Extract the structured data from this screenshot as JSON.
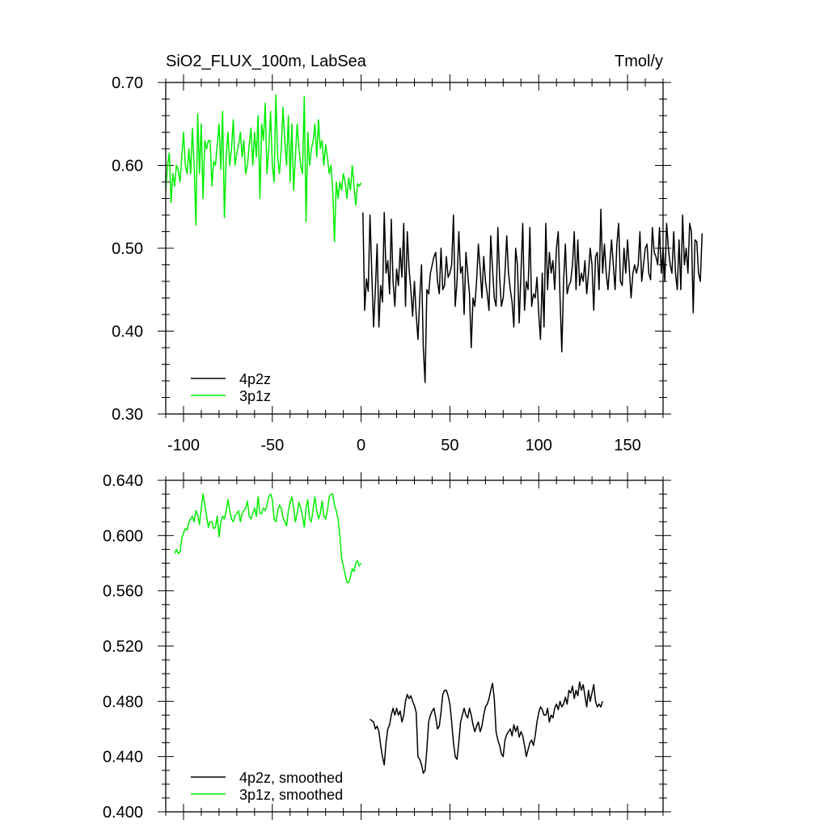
{
  "chart_data": [
    {
      "type": "line",
      "title": "SiO2_FLUX_100m, LabSea",
      "units": "Tmol/y",
      "xlim": [
        -110,
        170
      ],
      "ylim": [
        0.3,
        0.7
      ],
      "x_ticks": [
        -100,
        -50,
        0,
        50,
        100,
        150
      ],
      "x_tick_labels": [
        "-100",
        "-50",
        "0",
        "50",
        "100",
        "150"
      ],
      "y_ticks": [
        0.3,
        0.4,
        0.5,
        0.6,
        0.7
      ],
      "y_tick_labels": [
        "0.30",
        "0.40",
        "0.50",
        "0.60",
        "0.70"
      ],
      "legend_position": "bottom-left",
      "series": [
        {
          "name": "4p2z",
          "color": "#000000",
          "x_start": 1,
          "x_step": 1,
          "values": [
            0.543,
            0.425,
            0.463,
            0.448,
            0.54,
            0.47,
            0.405,
            0.45,
            0.505,
            0.405,
            0.455,
            0.435,
            0.543,
            0.47,
            0.485,
            0.445,
            0.535,
            0.46,
            0.43,
            0.475,
            0.455,
            0.5,
            0.465,
            0.53,
            0.43,
            0.52,
            0.475,
            0.45,
            0.418,
            0.46,
            0.42,
            0.39,
            0.44,
            0.48,
            0.38,
            0.338,
            0.45,
            0.445,
            0.47,
            0.48,
            0.49,
            0.495,
            0.46,
            0.445,
            0.5,
            0.45,
            0.455,
            0.49,
            0.465,
            0.47,
            0.48,
            0.54,
            0.43,
            0.46,
            0.52,
            0.47,
            0.478,
            0.42,
            0.495,
            0.47,
            0.445,
            0.38,
            0.44,
            0.43,
            0.46,
            0.505,
            0.475,
            0.44,
            0.49,
            0.46,
            0.445,
            0.425,
            0.515,
            0.475,
            0.44,
            0.43,
            0.525,
            0.465,
            0.43,
            0.44,
            0.47,
            0.515,
            0.47,
            0.45,
            0.435,
            0.405,
            0.5,
            0.48,
            0.41,
            0.47,
            0.53,
            0.425,
            0.46,
            0.45,
            0.525,
            0.43,
            0.445,
            0.44,
            0.465,
            0.42,
            0.39,
            0.47,
            0.405,
            0.53,
            0.45,
            0.495,
            0.47,
            0.485,
            0.45,
            0.5,
            0.52,
            0.44,
            0.375,
            0.46,
            0.505,
            0.445,
            0.455,
            0.46,
            0.48,
            0.52,
            0.45,
            0.51,
            0.455,
            0.47,
            0.46,
            0.485,
            0.445,
            0.47,
            0.5,
            0.48,
            0.425,
            0.49,
            0.495,
            0.45,
            0.547,
            0.47,
            0.505,
            0.47,
            0.45,
            0.48,
            0.51,
            0.48,
            0.45,
            0.505,
            0.53,
            0.46,
            0.455,
            0.5,
            0.47,
            0.51,
            0.475,
            0.44,
            0.47,
            0.48,
            0.47,
            0.48,
            0.52,
            0.46,
            0.48,
            0.5,
            0.505,
            0.47,
            0.462,
            0.525,
            0.495,
            0.49,
            0.48,
            0.525,
            0.47,
            0.5,
            0.46,
            0.53,
            0.5,
            0.48,
            0.47,
            0.52,
            0.47,
            0.45,
            0.51,
            0.45,
            0.54,
            0.48,
            0.5,
            0.47,
            0.53,
            0.52,
            0.422,
            0.51,
            0.508,
            0.47,
            0.46,
            0.518
          ]
        },
        {
          "name": "3p1z",
          "color": "#00ee00",
          "x_start": -110,
          "x_step": 1,
          "values": [
            0.57,
            0.6,
            0.615,
            0.555,
            0.59,
            0.575,
            0.6,
            0.595,
            0.58,
            0.61,
            0.64,
            0.6,
            0.59,
            0.62,
            0.59,
            0.645,
            0.6,
            0.528,
            0.662,
            0.59,
            0.65,
            0.56,
            0.63,
            0.62,
            0.63,
            0.63,
            0.575,
            0.605,
            0.6,
            0.625,
            0.65,
            0.595,
            0.665,
            0.537,
            0.61,
            0.64,
            0.6,
            0.62,
            0.655,
            0.6,
            0.615,
            0.625,
            0.64,
            0.61,
            0.63,
            0.59,
            0.6,
            0.625,
            0.645,
            0.6,
            0.64,
            0.61,
            0.66,
            0.56,
            0.65,
            0.63,
            0.675,
            0.59,
            0.62,
            0.665,
            0.6,
            0.58,
            0.685,
            0.61,
            0.59,
            0.62,
            0.67,
            0.63,
            0.6,
            0.66,
            0.58,
            0.65,
            0.57,
            0.61,
            0.65,
            0.62,
            0.6,
            0.59,
            0.683,
            0.532,
            0.64,
            0.6,
            0.62,
            0.63,
            0.65,
            0.61,
            0.655,
            0.62,
            0.63,
            0.6,
            0.625,
            0.61,
            0.59,
            0.6,
            0.57,
            0.508,
            0.58,
            0.56,
            0.58,
            0.57,
            0.59,
            0.58,
            0.56,
            0.585,
            0.57,
            0.6,
            0.575,
            0.552,
            0.578,
            0.575,
            0.579
          ]
        }
      ]
    },
    {
      "type": "line",
      "title": "",
      "xlim": [
        -110,
        170
      ],
      "ylim": [
        0.4,
        0.64
      ],
      "x_ticks": [
        -100,
        -50,
        0,
        50,
        100,
        150
      ],
      "x_tick_labels": [
        "",
        "",
        "",
        "",
        "",
        ""
      ],
      "y_ticks": [
        0.4,
        0.44,
        0.48,
        0.52,
        0.56,
        0.6,
        0.64
      ],
      "y_tick_labels": [
        "0.400",
        "0.440",
        "0.480",
        "0.520",
        "0.560",
        "0.600",
        "0.640"
      ],
      "legend_position": "bottom-left",
      "series": [
        {
          "name": "4p2z, smoothed",
          "color": "#000000",
          "x_start": 5,
          "x_step": 1,
          "values": [
            0.467,
            0.466,
            0.465,
            0.46,
            0.462,
            0.458,
            0.448,
            0.44,
            0.434,
            0.45,
            0.46,
            0.463,
            0.47,
            0.475,
            0.47,
            0.475,
            0.47,
            0.473,
            0.465,
            0.47,
            0.48,
            0.485,
            0.482,
            0.484,
            0.48,
            0.477,
            0.472,
            0.44,
            0.438,
            0.434,
            0.428,
            0.43,
            0.445,
            0.465,
            0.47,
            0.473,
            0.475,
            0.468,
            0.46,
            0.462,
            0.472,
            0.485,
            0.488,
            0.488,
            0.484,
            0.478,
            0.465,
            0.45,
            0.44,
            0.438,
            0.45,
            0.465,
            0.47,
            0.475,
            0.47,
            0.468,
            0.475,
            0.47,
            0.463,
            0.458,
            0.462,
            0.465,
            0.458,
            0.462,
            0.47,
            0.476,
            0.478,
            0.482,
            0.488,
            0.493,
            0.482,
            0.458,
            0.452,
            0.448,
            0.442,
            0.44,
            0.452,
            0.456,
            0.458,
            0.46,
            0.455,
            0.463,
            0.458,
            0.462,
            0.454,
            0.458,
            0.455,
            0.448,
            0.44,
            0.445,
            0.45,
            0.452,
            0.448,
            0.455,
            0.465,
            0.472,
            0.476,
            0.474,
            0.47,
            0.47,
            0.475,
            0.465,
            0.47,
            0.468,
            0.475,
            0.478,
            0.474,
            0.48,
            0.476,
            0.478,
            0.483,
            0.478,
            0.488,
            0.486,
            0.491,
            0.482,
            0.488,
            0.484,
            0.494,
            0.488,
            0.492,
            0.484,
            0.476,
            0.488,
            0.48,
            0.486,
            0.492,
            0.48,
            0.476,
            0.478,
            0.476,
            0.48
          ]
        },
        {
          "name": "3p1z, smoothed",
          "color": "#00ee00",
          "x_start": -105,
          "x_step": 1,
          "values": [
            0.587,
            0.59,
            0.587,
            0.588,
            0.598,
            0.602,
            0.605,
            0.604,
            0.61,
            0.612,
            0.614,
            0.61,
            0.618,
            0.615,
            0.608,
            0.62,
            0.63,
            0.622,
            0.614,
            0.606,
            0.61,
            0.61,
            0.605,
            0.606,
            0.614,
            0.599,
            0.61,
            0.614,
            0.612,
            0.618,
            0.626,
            0.618,
            0.612,
            0.61,
            0.614,
            0.616,
            0.618,
            0.61,
            0.616,
            0.618,
            0.62,
            0.625,
            0.614,
            0.612,
            0.616,
            0.62,
            0.614,
            0.628,
            0.616,
            0.616,
            0.62,
            0.618,
            0.622,
            0.628,
            0.63,
            0.626,
            0.612,
            0.61,
            0.618,
            0.622,
            0.62,
            0.613,
            0.61,
            0.607,
            0.618,
            0.624,
            0.628,
            0.62,
            0.61,
            0.616,
            0.624,
            0.62,
            0.614,
            0.606,
            0.62,
            0.626,
            0.612,
            0.61,
            0.62,
            0.628,
            0.618,
            0.612,
            0.616,
            0.625,
            0.614,
            0.612,
            0.618,
            0.628,
            0.63,
            0.63,
            0.622,
            0.618,
            0.612,
            0.6,
            0.584,
            0.578,
            0.572,
            0.566,
            0.566,
            0.57,
            0.576,
            0.574,
            0.58,
            0.582,
            0.578,
            0.58
          ]
        }
      ]
    }
  ]
}
